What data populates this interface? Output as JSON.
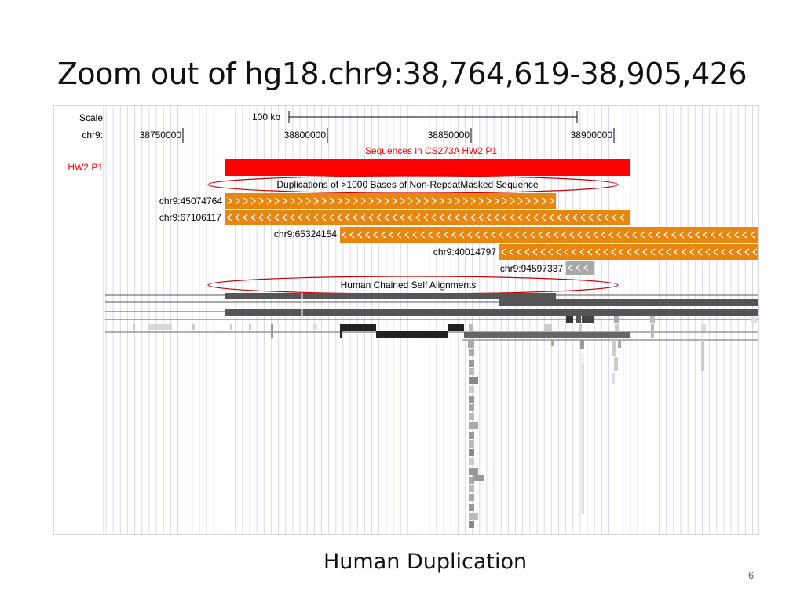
{
  "slide": {
    "title": "Zoom out of hg18.chr9:38,764,619-38,905,426",
    "caption": "Human Duplication",
    "page_number": "6"
  },
  "browser": {
    "scale_label": "Scale",
    "scale_value": "100 kb",
    "chrom_label": "chr9:",
    "ticks": [
      "38750000",
      "38800000",
      "38850000",
      "38900000"
    ],
    "track_header_cs": "Sequences in CS273A HW2 P1",
    "track_label_hw2": "HW2 P1",
    "track_header_dups": "Duplications of >1000 Bases of Non-RepeatMasked Sequence",
    "dup_items": [
      {
        "label": "chr9:45074764",
        "strand": "forward",
        "color": "#e8870f"
      },
      {
        "label": "chr9:67106117",
        "strand": "reverse",
        "color": "#e8870f"
      },
      {
        "label": "chr9:65324154",
        "strand": "reverse",
        "color": "#e8870f"
      },
      {
        "label": "chr9:40014797",
        "strand": "reverse",
        "color": "#e8870f"
      },
      {
        "label": "chr9:94597337",
        "strand": "reverse",
        "color": "#a8a8a8"
      }
    ],
    "track_header_chains": "Human Chained Self Alignments"
  },
  "colors": {
    "hw2_track": "#ff0000",
    "dup_orange": "#e8870f",
    "dup_gray": "#a8a8a8",
    "annotation_ellipse": "#cc0000",
    "chain_dark": "#555555",
    "grid_line": "#d7d7f0"
  }
}
